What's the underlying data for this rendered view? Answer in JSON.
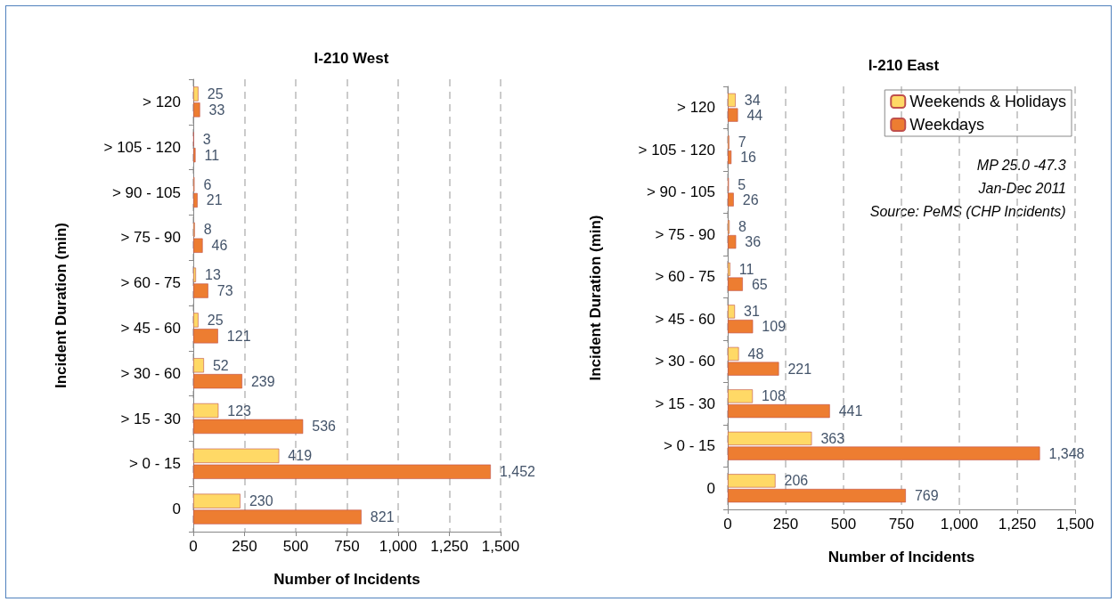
{
  "chart_data": [
    {
      "type": "bar",
      "orientation": "horizontal",
      "title": "I-210 West",
      "xlabel": "Number of Incidents",
      "ylabel": "Incident Duration (min)",
      "categories": [
        "> 120",
        "> 105 - 120",
        "> 90 - 105",
        "> 75 - 90",
        "> 60 - 75",
        "> 45 - 60",
        "> 30 - 60",
        "> 15 - 30",
        "> 0 - 15",
        "0"
      ],
      "series": [
        {
          "color": "#ffd966",
          "values": [
            25,
            3,
            6,
            8,
            13,
            25,
            52,
            123,
            419,
            230
          ],
          "value_labels": [
            "25",
            "3",
            "6",
            "8",
            "13",
            "25",
            "52",
            "123",
            "419",
            "230"
          ]
        },
        {
          "color": "#ed7d31",
          "values": [
            33,
            11,
            21,
            46,
            73,
            121,
            239,
            536,
            1452,
            821
          ],
          "value_labels": [
            "33",
            "11",
            "21",
            "46",
            "73",
            "121",
            "239",
            "536",
            "1,452",
            "821"
          ]
        }
      ],
      "xlim": [
        0,
        1500
      ],
      "xticks": [
        0,
        250,
        500,
        750,
        {
          "value": 1000,
          "label": "1,000"
        },
        {
          "value": 1250,
          "label": "1,250"
        },
        {
          "value": 1500,
          "label": "1,500"
        }
      ],
      "grid": "x",
      "legend": false
    },
    {
      "type": "bar",
      "orientation": "horizontal",
      "title": "I-210 East",
      "xlabel": "Number of Incidents",
      "ylabel": "Incident Duration (min)",
      "categories": [
        "> 120",
        "> 105 - 120",
        "> 90 - 105",
        "> 75 - 90",
        "> 60 - 75",
        "> 45 - 60",
        "> 30 - 60",
        "> 15 - 30",
        "> 0 - 15",
        "0"
      ],
      "series": [
        {
          "name": "Weekends & Holidays",
          "color": "#ffd966",
          "values": [
            34,
            7,
            5,
            8,
            11,
            31,
            48,
            108,
            363,
            206
          ],
          "value_labels": [
            "34",
            "7",
            "5",
            "8",
            "11",
            "31",
            "48",
            "108",
            "363",
            "206"
          ]
        },
        {
          "name": "Weekdays",
          "color": "#ed7d31",
          "values": [
            44,
            16,
            26,
            36,
            65,
            109,
            221,
            441,
            1348,
            769
          ],
          "value_labels": [
            "44",
            "16",
            "26",
            "36",
            "65",
            "109",
            "221",
            "441",
            "1,348",
            "769"
          ]
        }
      ],
      "xlim": [
        0,
        1500
      ],
      "xticks": [
        0,
        250,
        500,
        750,
        {
          "value": 1000,
          "label": "1,000"
        },
        {
          "value": 1250,
          "label": "1,250"
        },
        {
          "value": 1500,
          "label": "1,500"
        }
      ],
      "grid": "x",
      "legend": "top right",
      "annotations": [
        "MP 25.0 -47.3",
        "Jan-Dec 2011",
        "Source: PeMS (CHP Incidents)"
      ]
    }
  ]
}
